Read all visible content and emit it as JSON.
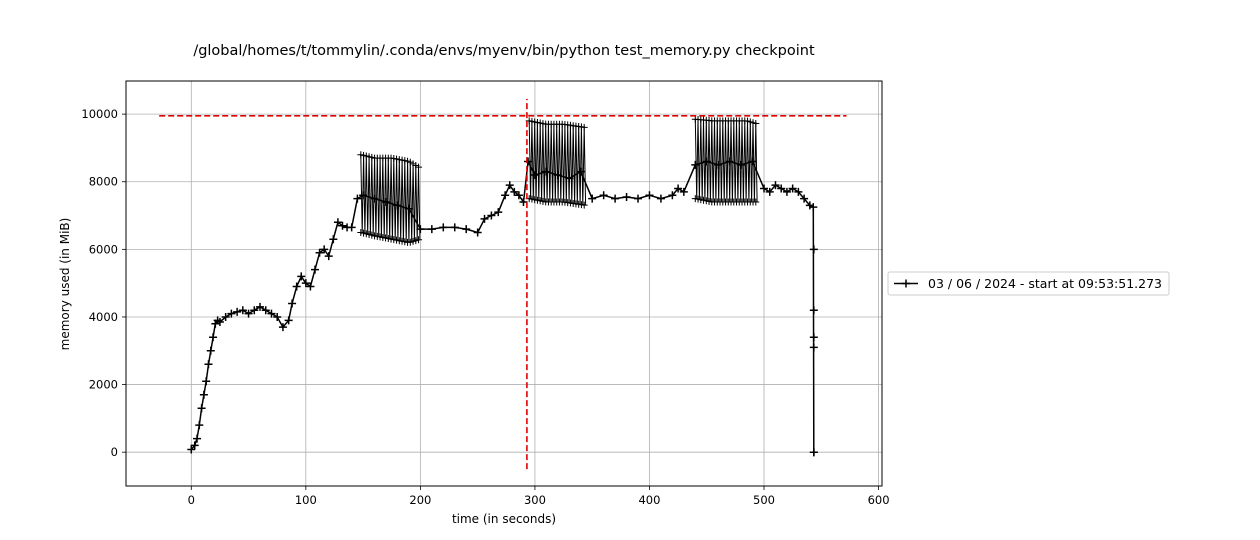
{
  "chart_data": {
    "type": "line",
    "title": "/global/homes/t/tommylin/.conda/envs/myenv/bin/python test_memory.py checkpoint",
    "xlabel": "time (in seconds)",
    "ylabel": "memory used (in MiB)",
    "xlim": [
      -57,
      603
    ],
    "ylim": [
      -1000,
      10980
    ],
    "xticks": [
      0,
      100,
      200,
      300,
      400,
      500,
      600
    ],
    "yticks": [
      0,
      2000,
      4000,
      6000,
      8000,
      10000
    ],
    "grid": true,
    "legend_placement": "right",
    "series": [
      {
        "name": "03 / 06 / 2024 - start at 09:53:51.273",
        "color": "#000000",
        "marker": "+",
        "x": [
          0,
          3,
          5,
          7,
          9,
          11,
          13,
          15,
          17,
          19,
          21,
          23,
          25,
          30,
          35,
          40,
          45,
          50,
          55,
          60,
          65,
          70,
          75,
          80,
          85,
          88,
          92,
          96,
          100,
          104,
          108,
          112,
          116,
          120,
          124,
          128,
          132,
          136,
          140,
          145,
          150,
          160,
          170,
          180,
          190,
          200,
          210,
          220,
          230,
          240,
          250,
          256,
          262,
          268,
          274,
          278,
          282,
          286,
          290,
          294,
          300,
          310,
          320,
          330,
          340,
          350,
          360,
          370,
          380,
          390,
          400,
          410,
          420,
          425,
          430,
          440,
          450,
          460,
          470,
          480,
          490,
          500,
          505,
          510,
          515,
          520,
          525,
          530,
          535,
          540,
          543,
          543.5
        ],
        "values": [
          80,
          200,
          400,
          800,
          1300,
          1700,
          2100,
          2600,
          3000,
          3400,
          3800,
          3900,
          3850,
          4000,
          4100,
          4150,
          4200,
          4100,
          4200,
          4300,
          4200,
          4100,
          4000,
          3700,
          3900,
          4400,
          4900,
          5200,
          5000,
          4900,
          5400,
          5900,
          6000,
          5800,
          6300,
          6800,
          6700,
          6650,
          6650,
          7500,
          7600,
          7500,
          7400,
          7300,
          7200,
          6600,
          6600,
          6650,
          6650,
          6600,
          6500,
          6900,
          7000,
          7100,
          7600,
          7900,
          7700,
          7600,
          7400,
          8600,
          8200,
          8300,
          8200,
          8100,
          8300,
          7500,
          7600,
          7500,
          7550,
          7500,
          7600,
          7500,
          7600,
          7800,
          7700,
          8500,
          8600,
          8500,
          8600,
          8500,
          8600,
          7800,
          7700,
          7900,
          7800,
          7700,
          7800,
          7700,
          7500,
          7300,
          7250,
          0
        ]
      }
    ],
    "envelope": {
      "x": [
        148,
        160,
        175,
        190,
        200,
        295,
        310,
        325,
        345,
        440,
        455,
        470,
        485,
        495
      ],
      "low": [
        6500,
        6400,
        6300,
        6200,
        6300,
        7500,
        7400,
        7400,
        7300,
        7500,
        7400,
        7400,
        7400,
        7400
      ],
      "high": [
        8800,
        8700,
        8700,
        8600,
        8400,
        9800,
        9700,
        9700,
        9600,
        9850,
        9800,
        9800,
        9800,
        9700
      ]
    },
    "drop_markers": {
      "x": 543.5,
      "values": [
        6000,
        4200,
        3400,
        3100,
        0
      ]
    },
    "annotations": [
      {
        "type": "hline",
        "y": 9950,
        "xmin": -28,
        "xmax": 572,
        "color": "#e00000",
        "style": "dashed"
      },
      {
        "type": "vline",
        "x": 293,
        "ymin": -500,
        "ymax": 10450,
        "color": "#e00000",
        "style": "dashed"
      }
    ]
  }
}
